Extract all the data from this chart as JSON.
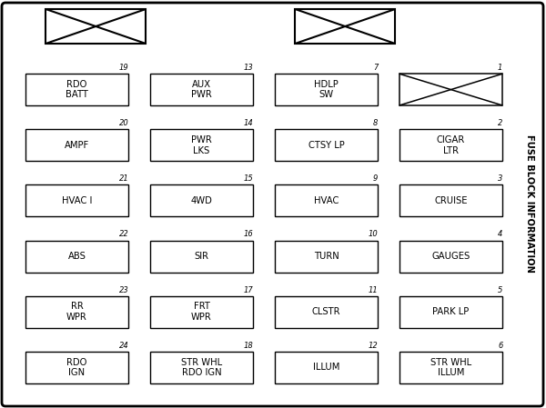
{
  "title": "FUSE BLOCK INFORMATION",
  "bg_color": "#ffffff",
  "border_color": "#000000",
  "text_color": "#000000",
  "fig_width": 6.0,
  "fig_height": 4.49,
  "fuses": [
    {
      "num": "19",
      "label": "RDO\nBATT",
      "col": 0,
      "row": 0,
      "type": "rect"
    },
    {
      "num": "13",
      "label": "AUX\nPWR",
      "col": 1,
      "row": 0,
      "type": "rect"
    },
    {
      "num": "7",
      "label": "HDLP\nSW",
      "col": 2,
      "row": 0,
      "type": "rect"
    },
    {
      "num": "1",
      "label": "",
      "col": 3,
      "row": 0,
      "type": "cross"
    },
    {
      "num": "20",
      "label": "AMPF",
      "col": 0,
      "row": 1,
      "type": "rect"
    },
    {
      "num": "14",
      "label": "PWR\nLKS",
      "col": 1,
      "row": 1,
      "type": "rect"
    },
    {
      "num": "8",
      "label": "CTSY LP",
      "col": 2,
      "row": 1,
      "type": "rect"
    },
    {
      "num": "2",
      "label": "CIGAR\nLTR",
      "col": 3,
      "row": 1,
      "type": "rect"
    },
    {
      "num": "21",
      "label": "HVAC I",
      "col": 0,
      "row": 2,
      "type": "rect"
    },
    {
      "num": "15",
      "label": "4WD",
      "col": 1,
      "row": 2,
      "type": "rect"
    },
    {
      "num": "9",
      "label": "HVAC",
      "col": 2,
      "row": 2,
      "type": "rect"
    },
    {
      "num": "3",
      "label": "CRUISE",
      "col": 3,
      "row": 2,
      "type": "rect"
    },
    {
      "num": "22",
      "label": "ABS",
      "col": 0,
      "row": 3,
      "type": "rect"
    },
    {
      "num": "16",
      "label": "SIR",
      "col": 1,
      "row": 3,
      "type": "rect"
    },
    {
      "num": "10",
      "label": "TURN",
      "col": 2,
      "row": 3,
      "type": "rect"
    },
    {
      "num": "4",
      "label": "GAUGES",
      "col": 3,
      "row": 3,
      "type": "rect"
    },
    {
      "num": "23",
      "label": "RR\nWPR",
      "col": 0,
      "row": 4,
      "type": "rect"
    },
    {
      "num": "17",
      "label": "FRT\nWPR",
      "col": 1,
      "row": 4,
      "type": "rect"
    },
    {
      "num": "11",
      "label": "CLSTR",
      "col": 2,
      "row": 4,
      "type": "rect"
    },
    {
      "num": "5",
      "label": "PARK LP",
      "col": 3,
      "row": 4,
      "type": "rect"
    },
    {
      "num": "24",
      "label": "RDO\nIGN",
      "col": 0,
      "row": 5,
      "type": "rect"
    },
    {
      "num": "18",
      "label": "STR WHL\nRDO IGN",
      "col": 1,
      "row": 5,
      "type": "rect"
    },
    {
      "num": "12",
      "label": "ILLUM",
      "col": 2,
      "row": 5,
      "type": "rect"
    },
    {
      "num": "6",
      "label": "STR WHL\nILLUM",
      "col": 3,
      "row": 5,
      "type": "rect"
    }
  ]
}
